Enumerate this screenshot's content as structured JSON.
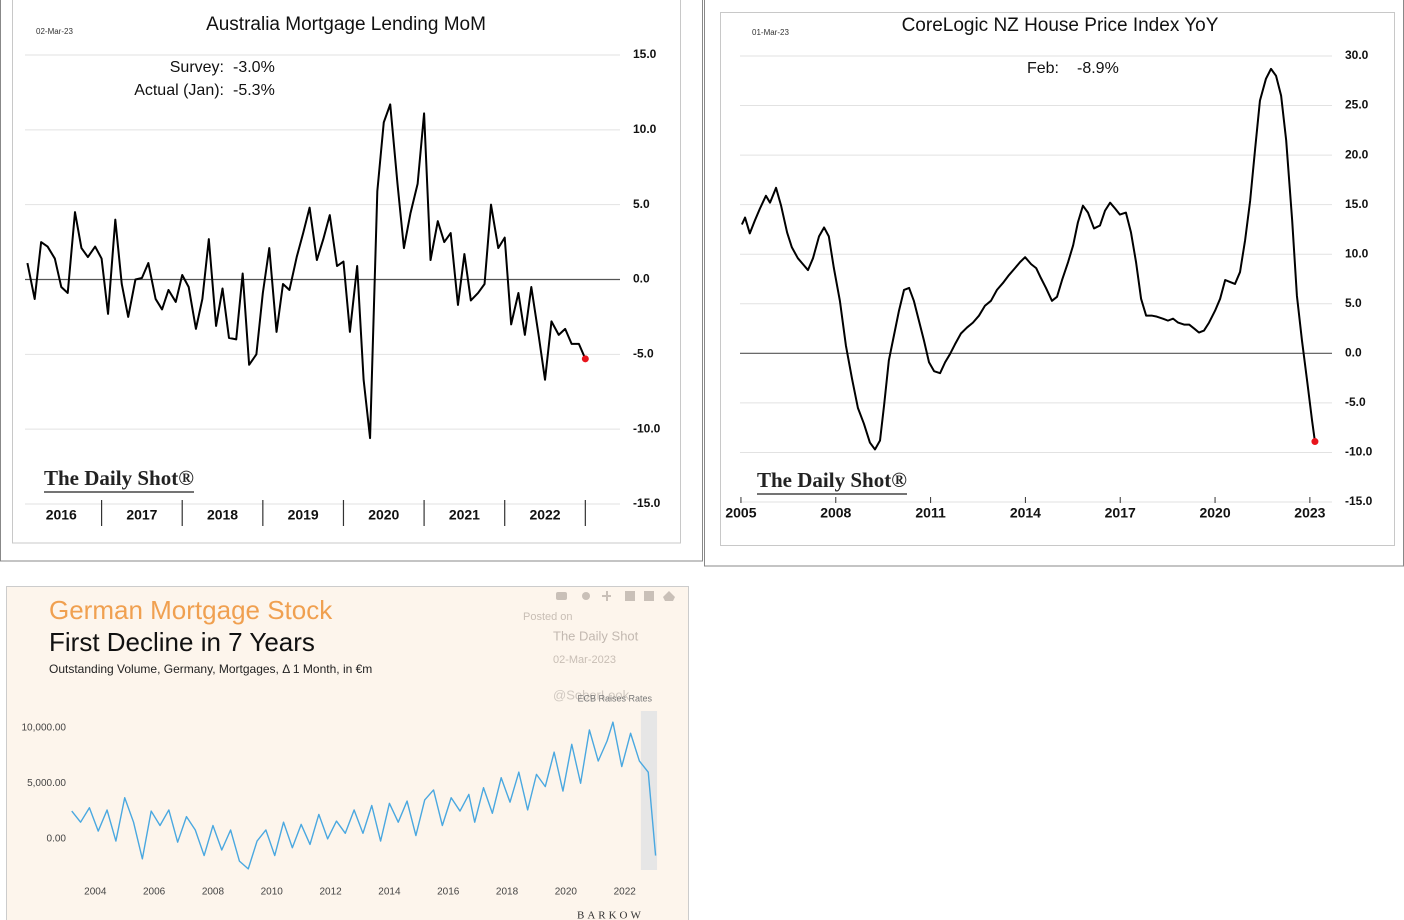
{
  "chart_data": [
    {
      "type": "line",
      "title": "Australia Mortgage Lending MoM",
      "date": "02-Mar-23",
      "annotations": [
        {
          "label": "Survey:",
          "value": "-3.0%"
        },
        {
          "label": "Actual (Jan):",
          "value": "-5.3%"
        }
      ],
      "watermark": "The Daily Shot®",
      "x": [
        2016.08,
        2016.17,
        2016.25,
        2016.33,
        2016.42,
        2016.5,
        2016.58,
        2016.67,
        2016.75,
        2016.83,
        2016.92,
        2017,
        2017.08,
        2017.17,
        2017.25,
        2017.33,
        2017.42,
        2017.5,
        2017.58,
        2017.67,
        2017.75,
        2017.83,
        2017.92,
        2018,
        2018.08,
        2018.17,
        2018.25,
        2018.33,
        2018.42,
        2018.5,
        2018.58,
        2018.67,
        2018.75,
        2018.83,
        2018.92,
        2019,
        2019.08,
        2019.17,
        2019.25,
        2019.33,
        2019.42,
        2019.5,
        2019.58,
        2019.67,
        2019.75,
        2019.83,
        2019.92,
        2020,
        2020.08,
        2020.17,
        2020.25,
        2020.33,
        2020.42,
        2020.5,
        2020.58,
        2020.67,
        2020.75,
        2020.83,
        2020.92,
        2021,
        2021.08,
        2021.17,
        2021.25,
        2021.33,
        2021.42,
        2021.5,
        2021.58,
        2021.67,
        2021.75,
        2021.83,
        2021.92,
        2022,
        2022.08,
        2022.17,
        2022.25,
        2022.33,
        2022.42,
        2022.5,
        2022.58,
        2022.67,
        2022.75,
        2022.83,
        2022.92,
        2023
      ],
      "values": [
        1.1,
        -1.3,
        2.5,
        2.2,
        1.4,
        -0.5,
        -0.9,
        4.5,
        2.1,
        1.5,
        2.2,
        1.4,
        -2.3,
        4.0,
        -0.3,
        -2.5,
        0,
        0.1,
        1.1,
        -1.3,
        -2,
        -0.7,
        -1.5,
        0.3,
        -0.5,
        -3.3,
        -1.3,
        2.7,
        -3.1,
        -0.6,
        -3.9,
        -4,
        0.4,
        -5.7,
        -5,
        -0.9,
        2.1,
        -3.5,
        -0.3,
        -0.7,
        1.5,
        3.1,
        4.8,
        1.3,
        2.7,
        4.3,
        0.9,
        1.2,
        -3.5,
        0.9,
        -6.7,
        -10.6,
        5.9,
        10.5,
        11.7,
        6.4,
        2.1,
        4.4,
        6.4,
        11.1,
        1.3,
        3.9,
        2.5,
        3.1,
        -1.7,
        1.7,
        -1.4,
        -0.9,
        -0.3,
        5.0,
        2.1,
        2.8,
        -3,
        -0.9,
        -3.7,
        -0.5,
        -3.7,
        -6.7,
        -2.8,
        -3.7,
        -3.3,
        -4.3,
        -4.3,
        -5.3
      ],
      "color": "#000000",
      "last_point_color": "#e8141c",
      "xlim": [
        2016.05,
        2023.43
      ],
      "xticks": [
        2016,
        2017,
        2018,
        2019,
        2020,
        2021,
        2022
      ],
      "ylim": [
        -15,
        15
      ],
      "yticks": [
        {
          "value": 15,
          "label": "15.0"
        },
        {
          "value": 10,
          "label": "10.0"
        },
        {
          "value": 5,
          "label": "5.0"
        },
        {
          "value": 0,
          "label": "0.0"
        },
        {
          "value": -5,
          "label": "-5.0"
        },
        {
          "value": -10,
          "label": "-10.0"
        },
        {
          "value": -15,
          "label": "-15.0"
        }
      ],
      "grid": true,
      "zero_line": true
    },
    {
      "type": "line",
      "title": "CoreLogic NZ House Price Index YoY",
      "date": "01-Mar-23",
      "annotations": [
        {
          "label": "Feb:",
          "value": "-8.9%"
        }
      ],
      "watermark": "The Daily Shot®",
      "x": [
        2005.03,
        2005.13,
        2005.28,
        2005.44,
        2005.6,
        2005.79,
        2005.92,
        2006.11,
        2006.27,
        2006.46,
        2006.61,
        2006.8,
        2006.96,
        2007.12,
        2007.28,
        2007.47,
        2007.63,
        2007.78,
        2007.94,
        2008.13,
        2008.32,
        2008.51,
        2008.7,
        2008.89,
        2009.08,
        2009.24,
        2009.4,
        2009.53,
        2009.68,
        2009.84,
        2010,
        2010.16,
        2010.32,
        2010.47,
        2010.63,
        2010.79,
        2010.95,
        2011.11,
        2011.3,
        2011.46,
        2011.61,
        2011.77,
        2011.96,
        2012.15,
        2012.34,
        2012.53,
        2012.72,
        2012.91,
        2013.1,
        2013.29,
        2013.48,
        2013.67,
        2013.83,
        2013.99,
        2014.18,
        2014.34,
        2014.49,
        2014.65,
        2014.84,
        2015,
        2015.16,
        2015.35,
        2015.51,
        2015.66,
        2015.82,
        2015.98,
        2016.17,
        2016.36,
        2016.52,
        2016.68,
        2016.84,
        2016.99,
        2017.18,
        2017.34,
        2017.5,
        2017.66,
        2017.82,
        2018.01,
        2018.16,
        2018.35,
        2018.51,
        2018.67,
        2018.83,
        2019.02,
        2019.18,
        2019.34,
        2019.49,
        2019.65,
        2019.81,
        2020,
        2020.16,
        2020.32,
        2020.47,
        2020.63,
        2020.79,
        2020.95,
        2021.11,
        2021.27,
        2021.42,
        2021.61,
        2021.77,
        2021.93,
        2022.09,
        2022.25,
        2022.44,
        2022.59,
        2022.75,
        2022.91,
        2023.07,
        2023.16
      ],
      "values": [
        13.0,
        13.7,
        12.1,
        13.4,
        14.6,
        15.9,
        15.2,
        16.7,
        14.9,
        12.2,
        10.7,
        9.6,
        9.0,
        8.4,
        9.6,
        11.8,
        12.7,
        11.8,
        8.6,
        5.3,
        0.8,
        -2.5,
        -5.5,
        -7.1,
        -9.0,
        -9.7,
        -8.8,
        -5.2,
        -0.7,
        1.8,
        4.3,
        6.4,
        6.6,
        5.3,
        3.3,
        1.3,
        -0.9,
        -1.8,
        -2.0,
        -0.9,
        -0.1,
        0.9,
        2.0,
        2.6,
        3.1,
        3.8,
        4.8,
        5.3,
        6.4,
        7.1,
        7.9,
        8.6,
        9.2,
        9.7,
        9.0,
        8.6,
        7.6,
        6.6,
        5.3,
        5.7,
        7.4,
        9.2,
        10.9,
        13.2,
        14.9,
        14.2,
        12.6,
        12.9,
        14.4,
        15.2,
        14.6,
        14.0,
        14.2,
        12.2,
        9.2,
        5.5,
        3.8,
        3.8,
        3.7,
        3.5,
        3.3,
        3.5,
        3.1,
        2.9,
        2.9,
        2.5,
        2.1,
        2.3,
        3.1,
        4.3,
        5.5,
        7.4,
        7.2,
        7.0,
        8.2,
        11.4,
        15.4,
        20.7,
        25.5,
        27.7,
        28.7,
        28.0,
        26.0,
        21.5,
        13.4,
        5.8,
        1.3,
        -2.7,
        -6.8,
        -8.9
      ],
      "color": "#000000",
      "last_point_color": "#e8141c",
      "xlim": [
        2004.97,
        2023.7
      ],
      "xticks": [
        2005,
        2008,
        2011,
        2014,
        2017,
        2020,
        2023
      ],
      "ylim": [
        -15,
        30
      ],
      "yticks": [
        {
          "value": 30,
          "label": "30.0"
        },
        {
          "value": 25,
          "label": "25.0"
        },
        {
          "value": 20,
          "label": "20.0"
        },
        {
          "value": 15,
          "label": "15.0"
        },
        {
          "value": 10,
          "label": "10.0"
        },
        {
          "value": 5,
          "label": "5.0"
        },
        {
          "value": 0,
          "label": "0.0"
        },
        {
          "value": -5,
          "label": "-5.0"
        },
        {
          "value": -10,
          "label": "-10.0"
        },
        {
          "value": -15,
          "label": "-15.0"
        }
      ],
      "grid": true,
      "zero_line": true
    },
    {
      "type": "line",
      "title": "German Mortgage Stock",
      "subtitle": "First Decline in 7 Years",
      "caption": "Outstanding Volume, Germany, Mortgages, Δ 1 Month, in €m",
      "posted": [
        "Posted on",
        "The Daily Shot",
        "02-Mar-2023"
      ],
      "handle": "@SoberLook",
      "event_label": "ECB Raises Rates",
      "source": "BARKOW",
      "x": [
        2003.2,
        2003.5,
        2003.8,
        2004.1,
        2004.4,
        2004.7,
        2005.0,
        2005.3,
        2005.6,
        2005.9,
        2006.2,
        2006.5,
        2006.8,
        2007.1,
        2007.4,
        2007.7,
        2008.0,
        2008.3,
        2008.6,
        2008.9,
        2009.2,
        2009.5,
        2009.8,
        2010.1,
        2010.4,
        2010.7,
        2011.0,
        2011.3,
        2011.6,
        2011.9,
        2012.2,
        2012.5,
        2012.8,
        2013.1,
        2013.4,
        2013.7,
        2014.0,
        2014.3,
        2014.6,
        2014.9,
        2015.2,
        2015.5,
        2015.8,
        2016.1,
        2016.4,
        2016.7,
        2016.9,
        2017.2,
        2017.5,
        2017.8,
        2018.1,
        2018.4,
        2018.7,
        2019.0,
        2019.3,
        2019.6,
        2019.9,
        2020.2,
        2020.5,
        2020.8,
        2021.1,
        2021.4,
        2021.6,
        2021.9,
        2022.2,
        2022.5,
        2022.8,
        2023.05
      ],
      "values": [
        2500,
        1500,
        2800,
        700,
        2600,
        -200,
        3700,
        1500,
        -1800,
        2500,
        1200,
        2600,
        -300,
        2000,
        800,
        -1500,
        1200,
        -1000,
        800,
        -2000,
        -2700,
        -200,
        800,
        -1500,
        1500,
        -800,
        1300,
        -500,
        2200,
        0,
        1600,
        500,
        2600,
        500,
        3000,
        -200,
        3200,
        1500,
        3400,
        300,
        3500,
        4400,
        1200,
        3700,
        2500,
        4000,
        1500,
        4600,
        2300,
        5500,
        3300,
        6000,
        2600,
        5800,
        4700,
        7800,
        4300,
        8500,
        5000,
        9800,
        7000,
        8800,
        10500,
        6500,
        9500,
        7000,
        6000,
        -1500
      ],
      "color": "#4aa8e0",
      "shade_x": [
        2022.55,
        2023.1
      ],
      "shade_color": "#e6e6e6",
      "xlim": [
        2002.8,
        2023.2
      ],
      "xticks": [
        2004,
        2006,
        2008,
        2010,
        2012,
        2014,
        2016,
        2018,
        2020,
        2022
      ],
      "ylim": [
        -2800,
        11500
      ],
      "yticks": [
        {
          "value": 10000,
          "label": "10,000.00"
        },
        {
          "value": 5000,
          "label": "5,000.00"
        },
        {
          "value": 0,
          "label": "0.00"
        }
      ],
      "grid": false,
      "zero_line": false
    }
  ]
}
